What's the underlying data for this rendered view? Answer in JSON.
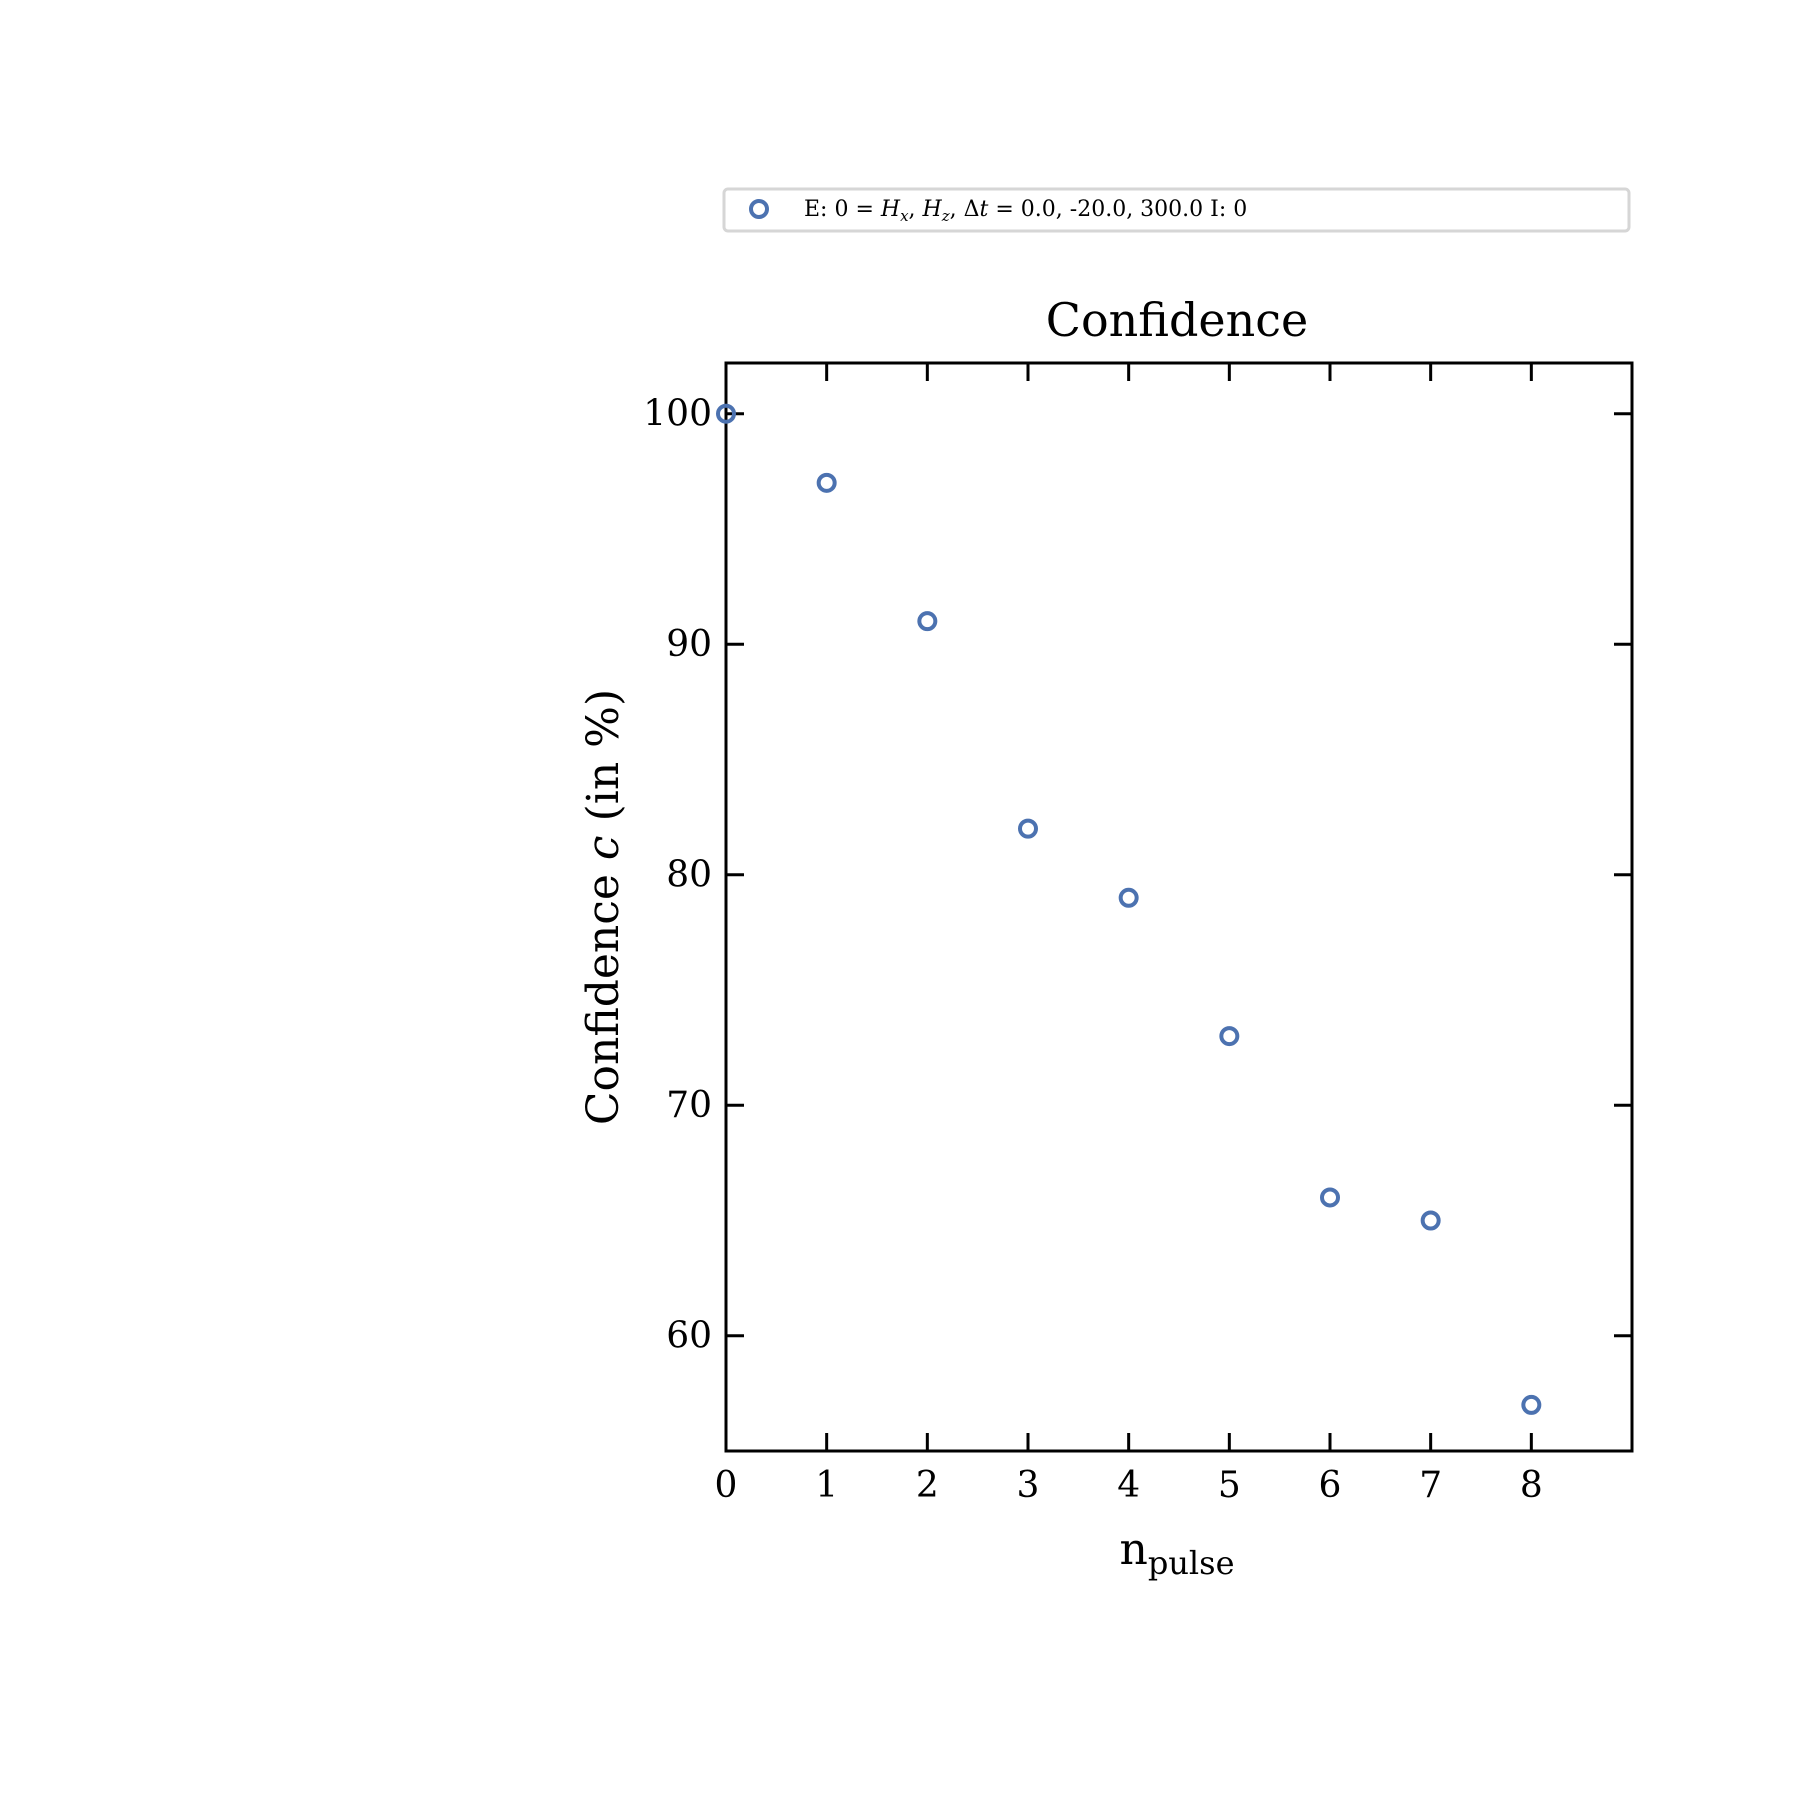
{
  "chart_data": {
    "type": "scatter",
    "title": "Confidence",
    "xlabel": {
      "main": "n",
      "sub": "pulse"
    },
    "ylabel": {
      "prefix": "Confidence ",
      "var": "c",
      "suffix": " (in %)"
    },
    "xlim": [
      0,
      9
    ],
    "ylim": [
      55,
      102.2
    ],
    "xticks": [
      0,
      1,
      2,
      3,
      4,
      5,
      6,
      7,
      8
    ],
    "yticks": [
      60,
      70,
      80,
      90,
      100
    ],
    "grid": false,
    "legend_position": "top (above title)",
    "series": [
      {
        "name": "E: 0 = Hx, Hz, Δt = 0.0, -20.0, 300.0 I: 0",
        "marker": "open-circle",
        "color": "#4c72b0",
        "x": [
          0,
          1,
          2,
          3,
          4,
          5,
          6,
          7,
          8
        ],
        "y": [
          100,
          97,
          91,
          82,
          79,
          73,
          66,
          65,
          57
        ]
      }
    ],
    "legend": {
      "prefix": "E: 0 = ",
      "h": "H",
      "x_sub": "x",
      "z_sub": "z",
      "delta": "Δ",
      "t": "t",
      "eq": " = ",
      "values": "0.0, -20.0, 300.0 I: 0"
    }
  }
}
